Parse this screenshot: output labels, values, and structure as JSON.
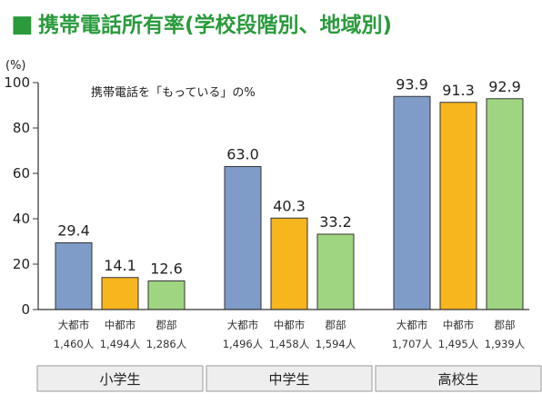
{
  "colors": {
    "title": "#2a9a3c",
    "square": "#2a9a3c",
    "bar_city": "#7f9cc8",
    "bar_mid": "#f7b51e",
    "bar_rural": "#9fd481",
    "stroke": "#333333",
    "group_box": "#eeeeee"
  },
  "chart_data": {
    "type": "bar",
    "title": "携帯電話所有率(学校段階別、地域別)",
    "title_marker": "■",
    "ylabel": "(%)",
    "annotation": "携帯電話を「もっている」の%",
    "ylim": [
      0,
      100
    ],
    "yticks": [
      "0",
      "20",
      "40",
      "60",
      "80",
      "100"
    ],
    "grid": false,
    "groups": [
      {
        "name": "小学生",
        "bars": [
          {
            "area": "大都市",
            "n": "1,460人",
            "value": 29.4,
            "label": "29.4"
          },
          {
            "area": "中都市",
            "n": "1,494人",
            "value": 14.1,
            "label": "14.1"
          },
          {
            "area": "郡部",
            "n": "1,286人",
            "value": 12.6,
            "label": "12.6"
          }
        ]
      },
      {
        "name": "中学生",
        "bars": [
          {
            "area": "大都市",
            "n": "1,496人",
            "value": 63.0,
            "label": "63.0"
          },
          {
            "area": "中都市",
            "n": "1,458人",
            "value": 40.3,
            "label": "40.3"
          },
          {
            "area": "郡部",
            "n": "1,594人",
            "value": 33.2,
            "label": "33.2"
          }
        ]
      },
      {
        "name": "高校生",
        "bars": [
          {
            "area": "大都市",
            "n": "1,707人",
            "value": 93.9,
            "label": "93.9"
          },
          {
            "area": "中都市",
            "n": "1,495人",
            "value": 91.3,
            "label": "91.3"
          },
          {
            "area": "郡部",
            "n": "1,939人",
            "value": 92.9,
            "label": "92.9"
          }
        ]
      }
    ]
  }
}
